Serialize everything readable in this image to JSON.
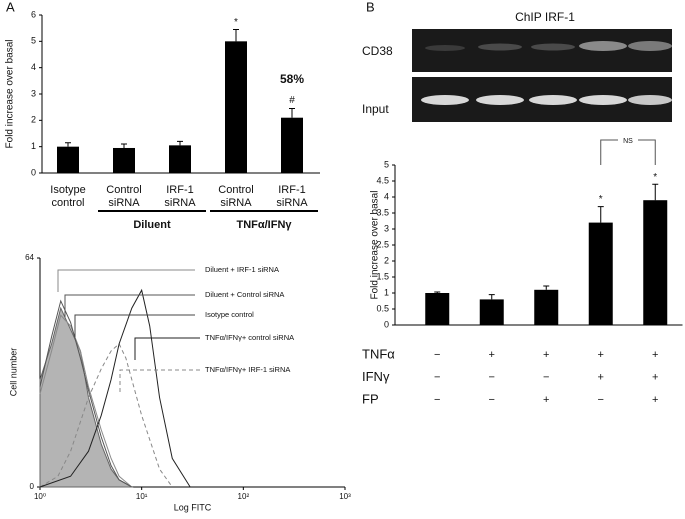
{
  "chart_data": [
    {
      "type": "bar",
      "panel": "A",
      "y_label": "Fold increase over basal",
      "categories": [
        "Isotype control",
        "Control siRNA",
        "IRF-1 siRNA",
        "Control siRNA",
        "IRF-1 siRNA"
      ],
      "values": [
        1,
        0.95,
        1.05,
        5,
        2.1
      ],
      "errors": [
        0.15,
        0.15,
        0.15,
        0.45,
        0.35
      ],
      "color": "#000000",
      "ylim": [
        0,
        6
      ],
      "yticks": [
        0,
        1,
        2,
        3,
        4,
        5,
        6
      ],
      "group_labels": [
        "Diluent",
        "TNFα/IFNγ"
      ],
      "annotations": [
        "*",
        "58%",
        "#"
      ]
    },
    {
      "type": "line",
      "x_label": "Log FITC",
      "y_label": "Cell number",
      "xscale": "log",
      "xlim": [
        1,
        1000
      ],
      "ylim": [
        0,
        64
      ],
      "xticks": [
        {
          "value": 1,
          "label": "10⁰"
        },
        {
          "value": 10,
          "label": "10¹"
        },
        {
          "value": 100,
          "label": "10²"
        },
        {
          "value": 1000,
          "label": "10³"
        }
      ],
      "yticks": [
        0,
        64
      ],
      "series": [
        {
          "name": "Diluent + IRF-1 siRNA",
          "color": "#8a8a8a",
          "style": "solid",
          "x": [
            1,
            1.3,
            1.6,
            2,
            2.5,
            3,
            4,
            5,
            6,
            8
          ],
          "values": [
            26,
            38,
            48,
            45,
            38,
            28,
            16,
            8,
            3,
            0
          ]
        },
        {
          "name": "Diluent + Control siRNA",
          "color": "#555555",
          "style": "solid",
          "x": [
            1,
            1.3,
            1.6,
            2,
            2.5,
            3,
            4,
            5,
            6,
            8
          ],
          "values": [
            28,
            42,
            52,
            46,
            36,
            27,
            14,
            6,
            2,
            0
          ]
        },
        {
          "name": "Isotype control",
          "color": "#b4b4b4",
          "style": "filled",
          "x": [
            1,
            1.3,
            1.6,
            2,
            2.5,
            3,
            4,
            5,
            6,
            8
          ],
          "values": [
            30,
            40,
            50,
            44,
            38,
            25,
            12,
            5,
            2,
            0
          ]
        },
        {
          "name": "TNFα/IFNγ+ control siRNA",
          "color": "#222222",
          "style": "solid",
          "x": [
            1,
            2,
            3,
            4,
            5,
            6,
            8,
            10,
            12,
            15,
            20,
            30
          ],
          "values": [
            0,
            3,
            10,
            20,
            30,
            40,
            50,
            55,
            45,
            25,
            8,
            0
          ]
        },
        {
          "name": "TNFα/IFNγ+ IRF-1 siRNA",
          "color": "#888888",
          "style": "dashed",
          "x": [
            1,
            1.5,
            2,
            3,
            4,
            5,
            6,
            7,
            8,
            10,
            15,
            20
          ],
          "values": [
            0,
            3,
            10,
            25,
            33,
            38,
            40,
            36,
            30,
            20,
            5,
            0
          ]
        }
      ]
    },
    {
      "type": "bar",
      "panel": "B",
      "title": "ChIP IRF-1",
      "gel_lanes": [
        "CD38",
        "Input"
      ],
      "y_label": "Fold increase over basal",
      "values": [
        1,
        0.8,
        1.1,
        3.2,
        3.9
      ],
      "errors": [
        0.03,
        0.15,
        0.12,
        0.5,
        0.5
      ],
      "color": "#000000",
      "ylim": [
        0,
        5
      ],
      "yticks": [
        0,
        0.5,
        1,
        1.5,
        2,
        2.5,
        3,
        3.5,
        4,
        4.5,
        5
      ],
      "annotations": [
        "NS",
        "*",
        "*"
      ],
      "treatments": [
        {
          "name": "TNFα",
          "signs": [
            "−",
            "+",
            "+",
            "+",
            "+"
          ]
        },
        {
          "name": "IFNγ",
          "signs": [
            "−",
            "−",
            "−",
            "+",
            "+"
          ]
        },
        {
          "name": "FP",
          "signs": [
            "−",
            "−",
            "+",
            "−",
            "+"
          ]
        }
      ]
    }
  ]
}
